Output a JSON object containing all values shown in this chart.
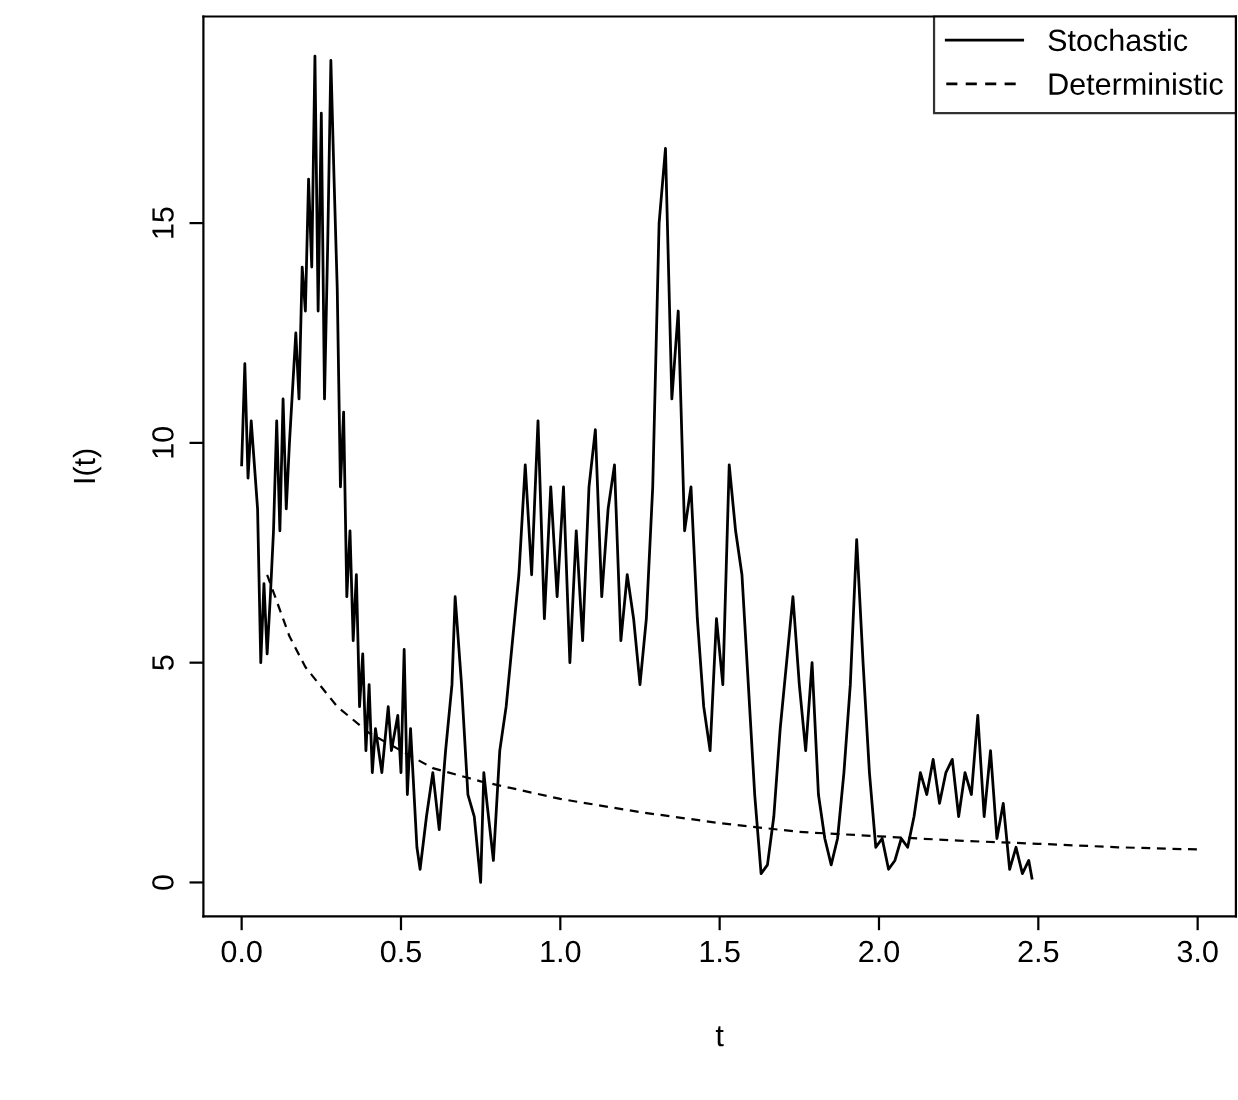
{
  "chart_data": {
    "type": "line",
    "xlabel": "t",
    "ylabel": "I(t)",
    "xlim": [
      -0.12,
      3.12
    ],
    "ylim": [
      -0.77,
      19.7
    ],
    "xticks": [
      {
        "value": 0,
        "label": "0.0"
      },
      0.5,
      {
        "value": 1,
        "label": "1.0"
      },
      1.5,
      {
        "value": 2,
        "label": "2.0"
      },
      2.5,
      {
        "value": 3,
        "label": "3.0"
      }
    ],
    "yticks": [
      0,
      5,
      10,
      15
    ],
    "grid": false,
    "legend": "top right",
    "series": [
      {
        "name": "Stochastic",
        "color": "#000000",
        "line_style": "solid",
        "x": [
          0.0,
          0.01,
          0.02,
          0.03,
          0.05,
          0.06,
          0.07,
          0.08,
          0.09,
          0.1,
          0.11,
          0.12,
          0.13,
          0.14,
          0.15,
          0.17,
          0.18,
          0.19,
          0.2,
          0.21,
          0.22,
          0.23,
          0.24,
          0.25,
          0.26,
          0.27,
          0.28,
          0.29,
          0.3,
          0.31,
          0.32,
          0.33,
          0.34,
          0.35,
          0.36,
          0.37,
          0.38,
          0.39,
          0.4,
          0.41,
          0.42,
          0.44,
          0.46,
          0.47,
          0.49,
          0.5,
          0.51,
          0.52,
          0.53,
          0.55,
          0.56,
          0.58,
          0.6,
          0.62,
          0.64,
          0.66,
          0.67,
          0.69,
          0.71,
          0.73,
          0.75,
          0.76,
          0.77,
          0.79,
          0.81,
          0.83,
          0.85,
          0.87,
          0.89,
          0.91,
          0.93,
          0.95,
          0.97,
          0.99,
          1.01,
          1.03,
          1.05,
          1.07,
          1.09,
          1.11,
          1.13,
          1.15,
          1.17,
          1.19,
          1.21,
          1.23,
          1.25,
          1.27,
          1.29,
          1.31,
          1.33,
          1.35,
          1.37,
          1.39,
          1.41,
          1.43,
          1.45,
          1.47,
          1.49,
          1.51,
          1.53,
          1.55,
          1.57,
          1.59,
          1.61,
          1.63,
          1.65,
          1.67,
          1.69,
          1.71,
          1.73,
          1.75,
          1.77,
          1.79,
          1.81,
          1.83,
          1.85,
          1.87,
          1.89,
          1.91,
          1.93,
          1.95,
          1.97,
          1.99,
          2.01,
          2.03,
          2.05,
          2.07,
          2.09,
          2.11,
          2.13,
          2.15,
          2.17,
          2.19,
          2.21,
          2.23,
          2.25,
          2.27,
          2.29,
          2.31,
          2.33,
          2.35,
          2.37,
          2.39,
          2.41,
          2.43,
          2.45,
          2.47,
          2.48
        ],
        "values": [
          9.5,
          11.8,
          9.2,
          10.5,
          8.5,
          5.0,
          6.8,
          5.2,
          6.5,
          8.0,
          10.5,
          8.0,
          11.0,
          8.5,
          10.0,
          12.5,
          11.0,
          14.0,
          13.0,
          16.0,
          14.0,
          18.8,
          13.0,
          17.5,
          11.0,
          14.5,
          18.7,
          16.0,
          13.5,
          9.0,
          10.7,
          6.5,
          8.0,
          5.5,
          7.0,
          4.0,
          5.2,
          3.0,
          4.5,
          2.5,
          3.5,
          2.5,
          4.0,
          3.0,
          3.8,
          2.5,
          5.3,
          2.0,
          3.5,
          0.8,
          0.3,
          1.5,
          2.5,
          1.2,
          3.0,
          4.5,
          6.5,
          4.5,
          2.0,
          1.5,
          0.0,
          2.5,
          1.8,
          0.5,
          3.0,
          4.0,
          5.5,
          7.0,
          9.5,
          7.0,
          10.5,
          6.0,
          9.0,
          6.5,
          9.0,
          5.0,
          8.0,
          5.5,
          9.0,
          10.3,
          6.5,
          8.5,
          9.5,
          5.5,
          7.0,
          6.0,
          4.5,
          6.0,
          9.0,
          15.0,
          16.7,
          11.0,
          13.0,
          8.0,
          9.0,
          6.0,
          4.0,
          3.0,
          6.0,
          4.5,
          9.5,
          8.0,
          7.0,
          4.5,
          2.0,
          0.2,
          0.4,
          1.5,
          3.5,
          5.0,
          6.5,
          4.5,
          3.0,
          5.0,
          2.0,
          1.0,
          0.4,
          1.0,
          2.5,
          4.5,
          7.8,
          5.0,
          2.5,
          0.8,
          1.0,
          0.3,
          0.5,
          1.0,
          0.8,
          1.5,
          2.5,
          2.0,
          2.8,
          1.8,
          2.5,
          2.8,
          1.5,
          2.5,
          2.0,
          3.8,
          1.5,
          3.0,
          1.0,
          1.8,
          0.3,
          0.8,
          0.2,
          0.5,
          0.1
        ]
      },
      {
        "name": "Deterministic",
        "color": "#000000",
        "line_style": "dashed",
        "x": [
          0.08,
          0.15,
          0.2,
          0.3,
          0.4,
          0.5,
          0.6,
          0.75,
          1.0,
          1.25,
          1.5,
          1.75,
          2.0,
          2.25,
          2.5,
          2.75,
          3.0
        ],
        "values": [
          7.0,
          5.6,
          4.9,
          4.0,
          3.4,
          3.0,
          2.6,
          2.3,
          1.9,
          1.6,
          1.35,
          1.15,
          1.05,
          0.95,
          0.88,
          0.8,
          0.75
        ]
      }
    ]
  }
}
